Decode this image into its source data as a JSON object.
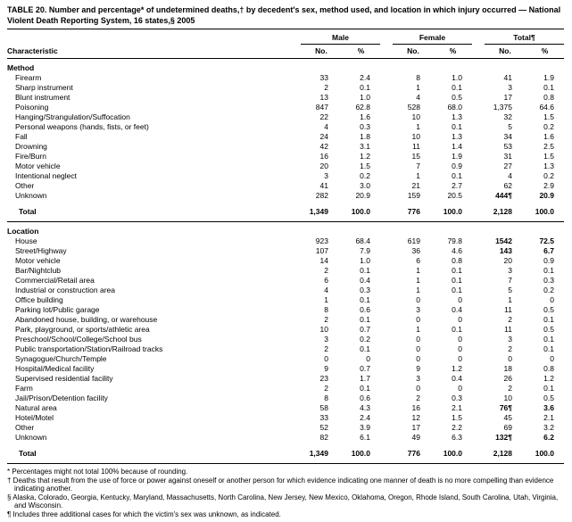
{
  "title": "TABLE 20. Number and percentage* of undetermined deaths,† by decedent's sex, method used, and location in which injury occurred — National Violent Death Reporting System, 16 states,§ 2005",
  "table": {
    "header": {
      "characteristic": "Characteristic",
      "groups": [
        {
          "label": "Male"
        },
        {
          "label": "Female"
        },
        {
          "label": "Total¶"
        }
      ],
      "subheaders": [
        "No.",
        "%"
      ]
    },
    "sections": [
      {
        "name": "Method",
        "rows": [
          {
            "label": "Firearm",
            "values": [
              "33",
              "2.4",
              "8",
              "1.0",
              "41",
              "1.9"
            ]
          },
          {
            "label": "Sharp instrument",
            "values": [
              "2",
              "0.1",
              "1",
              "0.1",
              "3",
              "0.1"
            ]
          },
          {
            "label": "Blunt instrument",
            "values": [
              "13",
              "1.0",
              "4",
              "0.5",
              "17",
              "0.8"
            ]
          },
          {
            "label": "Poisoning",
            "values": [
              "847",
              "62.8",
              "528",
              "68.0",
              "1,375",
              "64.6"
            ]
          },
          {
            "label": "Hanging/Strangulation/Suffocation",
            "values": [
              "22",
              "1.6",
              "10",
              "1.3",
              "32",
              "1.5"
            ]
          },
          {
            "label": "Personal weapons (hands, fists, or feet)",
            "values": [
              "4",
              "0.3",
              "1",
              "0.1",
              "5",
              "0.2"
            ]
          },
          {
            "label": "Fall",
            "values": [
              "24",
              "1.8",
              "10",
              "1.3",
              "34",
              "1.6"
            ]
          },
          {
            "label": "Drowning",
            "values": [
              "42",
              "3.1",
              "11",
              "1.4",
              "53",
              "2.5"
            ]
          },
          {
            "label": "Fire/Burn",
            "values": [
              "16",
              "1.2",
              "15",
              "1.9",
              "31",
              "1.5"
            ]
          },
          {
            "label": "Motor vehicle",
            "values": [
              "20",
              "1.5",
              "7",
              "0.9",
              "27",
              "1.3"
            ]
          },
          {
            "label": "Intentional neglect",
            "values": [
              "3",
              "0.2",
              "1",
              "0.1",
              "4",
              "0.2"
            ]
          },
          {
            "label": "Other",
            "values": [
              "41",
              "3.0",
              "21",
              "2.7",
              "62",
              "2.9"
            ]
          },
          {
            "label": "Unknown",
            "values": [
              "282",
              "20.9",
              "159",
              "20.5",
              "444¶",
              "20.9"
            ],
            "bold_total": true
          }
        ],
        "total": {
          "label": "Total",
          "values": [
            "1,349",
            "100.0",
            "776",
            "100.0",
            "2,128",
            "100.0"
          ]
        }
      },
      {
        "name": "Location",
        "rows": [
          {
            "label": "House",
            "values": [
              "923",
              "68.4",
              "619",
              "79.8",
              "1542",
              "72.5"
            ],
            "bold_total": true
          },
          {
            "label": "Street/Highway",
            "values": [
              "107",
              "7.9",
              "36",
              "4.6",
              "143",
              "6.7"
            ],
            "bold_total": true
          },
          {
            "label": "Motor vehicle",
            "values": [
              "14",
              "1.0",
              "6",
              "0.8",
              "20",
              "0.9"
            ]
          },
          {
            "label": "Bar/Nightclub",
            "values": [
              "2",
              "0.1",
              "1",
              "0.1",
              "3",
              "0.1"
            ]
          },
          {
            "label": "Commercial/Retail area",
            "values": [
              "6",
              "0.4",
              "1",
              "0.1",
              "7",
              "0.3"
            ]
          },
          {
            "label": "Industrial or construction area",
            "values": [
              "4",
              "0.3",
              "1",
              "0.1",
              "5",
              "0.2"
            ]
          },
          {
            "label": "Office building",
            "values": [
              "1",
              "0.1",
              "0",
              "0",
              "1",
              "0"
            ]
          },
          {
            "label": "Parking lot/Public garage",
            "values": [
              "8",
              "0.6",
              "3",
              "0.4",
              "11",
              "0.5"
            ]
          },
          {
            "label": "Abandoned house, building, or warehouse",
            "values": [
              "2",
              "0.1",
              "0",
              "0",
              "2",
              "0.1"
            ]
          },
          {
            "label": "Park, playground, or sports/athletic area",
            "values": [
              "10",
              "0.7",
              "1",
              "0.1",
              "11",
              "0.5"
            ]
          },
          {
            "label": "Preschool/School/College/School bus",
            "values": [
              "3",
              "0.2",
              "0",
              "0",
              "3",
              "0.1"
            ]
          },
          {
            "label": "Public transportation/Station/Railroad tracks",
            "values": [
              "2",
              "0.1",
              "0",
              "0",
              "2",
              "0.1"
            ]
          },
          {
            "label": "Synagogue/Church/Temple",
            "values": [
              "0",
              "0",
              "0",
              "0",
              "0",
              "0"
            ]
          },
          {
            "label": "Hospital/Medical facility",
            "values": [
              "9",
              "0.7",
              "9",
              "1.2",
              "18",
              "0.8"
            ]
          },
          {
            "label": "Supervised residential facility",
            "values": [
              "23",
              "1.7",
              "3",
              "0.4",
              "26",
              "1.2"
            ]
          },
          {
            "label": "Farm",
            "values": [
              "2",
              "0.1",
              "0",
              "0",
              "2",
              "0.1"
            ]
          },
          {
            "label": "Jail/Prison/Detention facility",
            "values": [
              "8",
              "0.6",
              "2",
              "0.3",
              "10",
              "0.5"
            ]
          },
          {
            "label": "Natural area",
            "values": [
              "58",
              "4.3",
              "16",
              "2.1",
              "76¶",
              "3.6"
            ],
            "bold_total": true
          },
          {
            "label": "Hotel/Motel",
            "values": [
              "33",
              "2.4",
              "12",
              "1.5",
              "45",
              "2.1"
            ]
          },
          {
            "label": "Other",
            "values": [
              "52",
              "3.9",
              "17",
              "2.2",
              "69",
              "3.2"
            ]
          },
          {
            "label": "Unknown",
            "values": [
              "82",
              "6.1",
              "49",
              "6.3",
              "132¶",
              "6.2"
            ],
            "bold_total": true
          }
        ],
        "total": {
          "label": "Total",
          "values": [
            "1,349",
            "100.0",
            "776",
            "100.0",
            "2,128",
            "100.0"
          ]
        }
      }
    ]
  },
  "footnotes": [
    "* Percentages might not total 100% because of rounding.",
    "† Deaths that result from the use of force or power against oneself or another person for which evidence indicating one manner of death is no more compelling than evidence indicating another.",
    "§ Alaska, Colorado, Georgia, Kentucky, Maryland, Massachusetts, North Carolina, New Jersey, New Mexico, Oklahoma, Oregon, Rhode Island, South Carolina, Utah, Virginia, and Wisconsin.",
    "¶ Includes three additional cases for which the victim's sex was unknown, as indicated."
  ]
}
